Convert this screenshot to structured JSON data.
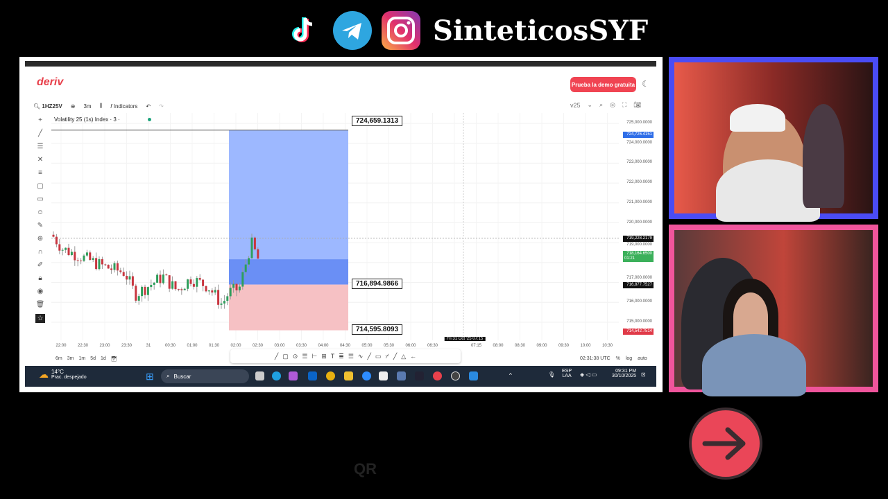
{
  "overlay": {
    "brand": "SinteticosSYF",
    "icons": [
      "tiktok-icon",
      "telegram-icon",
      "instagram-icon"
    ],
    "watermark": "QR"
  },
  "app": {
    "logo": "deriv",
    "demo_button": "Prueba la demo gratuita",
    "accent": "#f04452"
  },
  "toolbar": {
    "symbol": "1HZ25V",
    "interval": "3m",
    "indicators": "Indicators",
    "right_symbol": "v25"
  },
  "chart": {
    "title": "Volatility 25 (1s) Index · 3 ·",
    "box_labels": [
      "724,659.1313",
      "716,894.9866",
      "714,595.8093"
    ],
    "y_ticks": [
      "725,000.0000",
      "724,000.0000",
      "723,000.0000",
      "722,000.0000",
      "721,000.0000",
      "720,000.0000",
      "719,000.0000",
      "717,000.0000",
      "716,000.0000",
      "715,000.0000"
    ],
    "badges": {
      "top": "724,726.4151",
      "crosshair": "719,228.2179",
      "current": "718,164.6500",
      "countdown": "01:21",
      "entry": "716,877.7527",
      "bottom": "714,542.7514"
    },
    "x_ticks": [
      "22:00",
      "22:30",
      "23:00",
      "23:30",
      "31",
      "00:30",
      "01:00",
      "01:30",
      "02:00",
      "02:30",
      "03:00",
      "03:30",
      "04:00",
      "04:30",
      "05:00",
      "05:30",
      "06:00",
      "06:30",
      "",
      "07:15",
      "08:00",
      "08:30",
      "09:00",
      "09:30",
      "10:00",
      "10:30"
    ],
    "crosshair_time": "Fri 31 Oct '25  07:15",
    "timeframes": [
      "6m",
      "3m",
      "1m",
      "5d",
      "1d"
    ],
    "clock": "02:31:38 UTC",
    "scale_opts": [
      "%",
      "log",
      "auto"
    ],
    "colors": {
      "up": "#2e9e5b",
      "down": "#c8353f",
      "target": "#9db8ff",
      "entry": "#6a8ff5",
      "stop": "#f6c1c4"
    }
  },
  "taskbar": {
    "weather_temp": "14°C",
    "weather_desc": "Prac. despejado",
    "search": "Buscar",
    "lang1": "ESP",
    "lang2": "LAA",
    "time": "09:31 PM",
    "date": "30/10/2025"
  }
}
